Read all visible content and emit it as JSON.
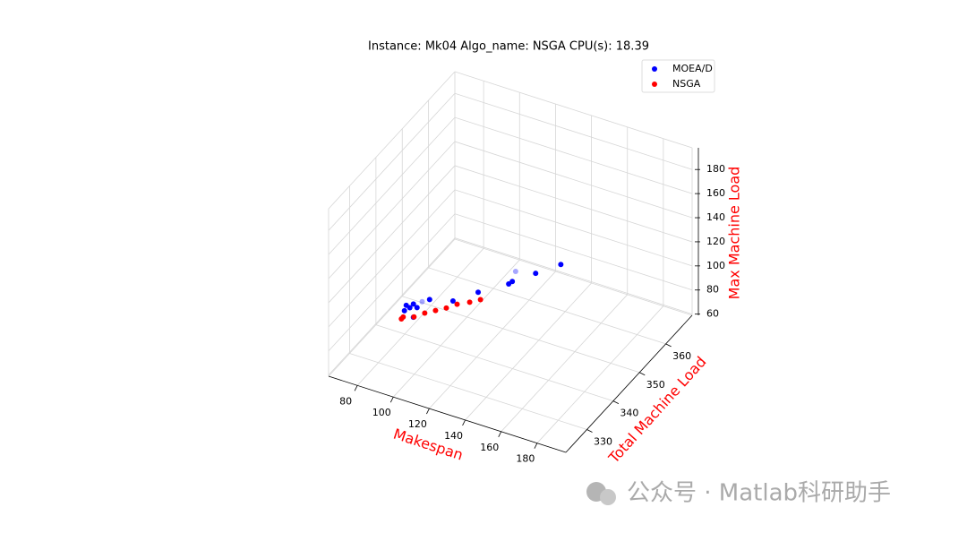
{
  "chart_data": {
    "type": "scatter3d",
    "title": "Instance: Mk04 Algo_name: NSGA CPU(s): 18.39",
    "xlabel": "Makespan",
    "ylabel": "Total Machine Load",
    "zlabel": "Max Machine Load",
    "label_color": "#ff0000",
    "xlim": [
      64,
      196
    ],
    "ylim": [
      322,
      370
    ],
    "zlim": [
      59,
      198
    ],
    "xticks": [
      80,
      100,
      120,
      140,
      160,
      180
    ],
    "yticks": [
      330,
      340,
      350,
      360
    ],
    "zticks": [
      60,
      80,
      100,
      120,
      140,
      160,
      180
    ],
    "grid": true,
    "legend": "upper right",
    "series": [
      {
        "name": "MOEA/D",
        "color": "#0000ff",
        "x": [
          74,
          75,
          77,
          79,
          81,
          79,
          88,
          78,
          101,
          115,
          132,
          134,
          147,
          161,
          130
        ],
        "y": [
          344,
          344,
          344,
          344,
          344,
          344,
          344,
          348,
          344,
          344,
          344,
          344,
          344,
          344,
          348
        ],
        "z": [
          66,
          71,
          70,
          74,
          72,
          63,
          82,
          66,
          87,
          101,
          116,
          119,
          132,
          146,
          116
        ]
      },
      {
        "name": "NSGA",
        "color": "#ff0000",
        "x": [
          84,
          85,
          91,
          97,
          103,
          109,
          115,
          122,
          128
        ],
        "y": [
          336,
          336,
          336,
          336,
          336,
          336,
          336,
          336,
          336
        ],
        "z": [
          83,
          85,
          88,
          94,
          99,
          104,
          110,
          115,
          120
        ]
      }
    ]
  },
  "watermark": "公众号 · Matlab科研助手"
}
